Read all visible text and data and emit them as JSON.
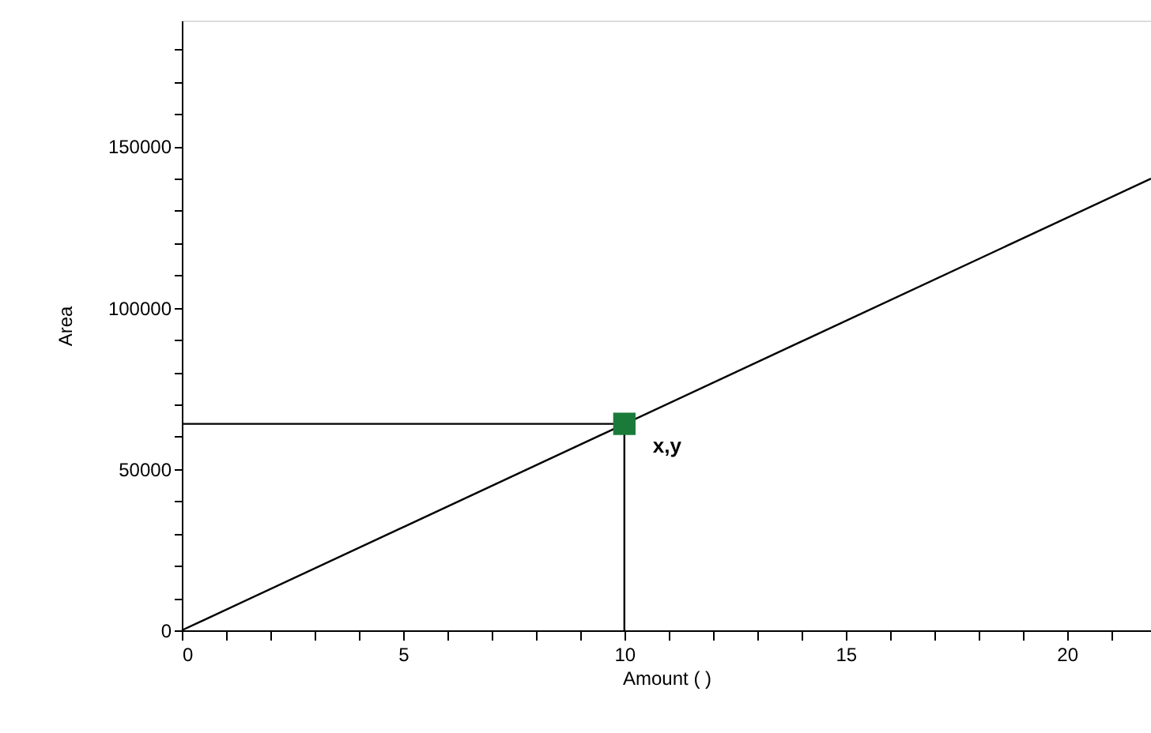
{
  "chart_data": {
    "type": "line",
    "xlabel": "Amount ( )",
    "ylabel": "Area",
    "xlim": [
      0,
      21.9
    ],
    "ylim": [
      0,
      189000
    ],
    "xticks": [
      0,
      {
        "value": 1,
        "label": null
      },
      {
        "value": 2,
        "label": null
      },
      {
        "value": 3,
        "label": null
      },
      {
        "value": 4,
        "label": null
      },
      5,
      {
        "value": 6,
        "label": null
      },
      {
        "value": 7,
        "label": null
      },
      {
        "value": 8,
        "label": null
      },
      {
        "value": 9,
        "label": null
      },
      10,
      {
        "value": 11,
        "label": null
      },
      {
        "value": 12,
        "label": null
      },
      {
        "value": 13,
        "label": null
      },
      {
        "value": 14,
        "label": null
      },
      15,
      {
        "value": 16,
        "label": null
      },
      {
        "value": 17,
        "label": null
      },
      {
        "value": 18,
        "label": null
      },
      {
        "value": 19,
        "label": null
      },
      20,
      {
        "value": 21,
        "label": null
      }
    ],
    "yticks": [
      0,
      {
        "value": 10000,
        "label": null
      },
      {
        "value": 20000,
        "label": null
      },
      {
        "value": 30000,
        "label": null
      },
      {
        "value": 40000,
        "label": null
      },
      50000,
      {
        "value": 60000,
        "label": null
      },
      {
        "value": 70000,
        "label": null
      },
      {
        "value": 80000,
        "label": null
      },
      {
        "value": 90000,
        "label": null
      },
      100000,
      {
        "value": 110000,
        "label": null
      },
      {
        "value": 120000,
        "label": null
      },
      {
        "value": 130000,
        "label": null
      },
      {
        "value": 140000,
        "label": null
      },
      150000,
      {
        "value": 160000,
        "label": null
      },
      {
        "value": 170000,
        "label": null
      },
      {
        "value": 180000,
        "label": null
      }
    ],
    "grid": false,
    "series": [
      {
        "type": "line",
        "color": "#000000",
        "x": [
          0,
          21.9
        ],
        "values": [
          0,
          140000
        ],
        "marker": "none"
      },
      {
        "type": "line",
        "color": "#000000",
        "x": [
          0,
          10,
          10
        ],
        "values": [
          64000,
          64000,
          0
        ],
        "marker": "none"
      },
      {
        "type": "scatter",
        "color": "#1a7a3a",
        "x": [
          10
        ],
        "values": [
          64000
        ],
        "marker": "square"
      }
    ],
    "annotations": [
      {
        "text": "x,y",
        "x": 10,
        "y": 64000
      }
    ]
  }
}
